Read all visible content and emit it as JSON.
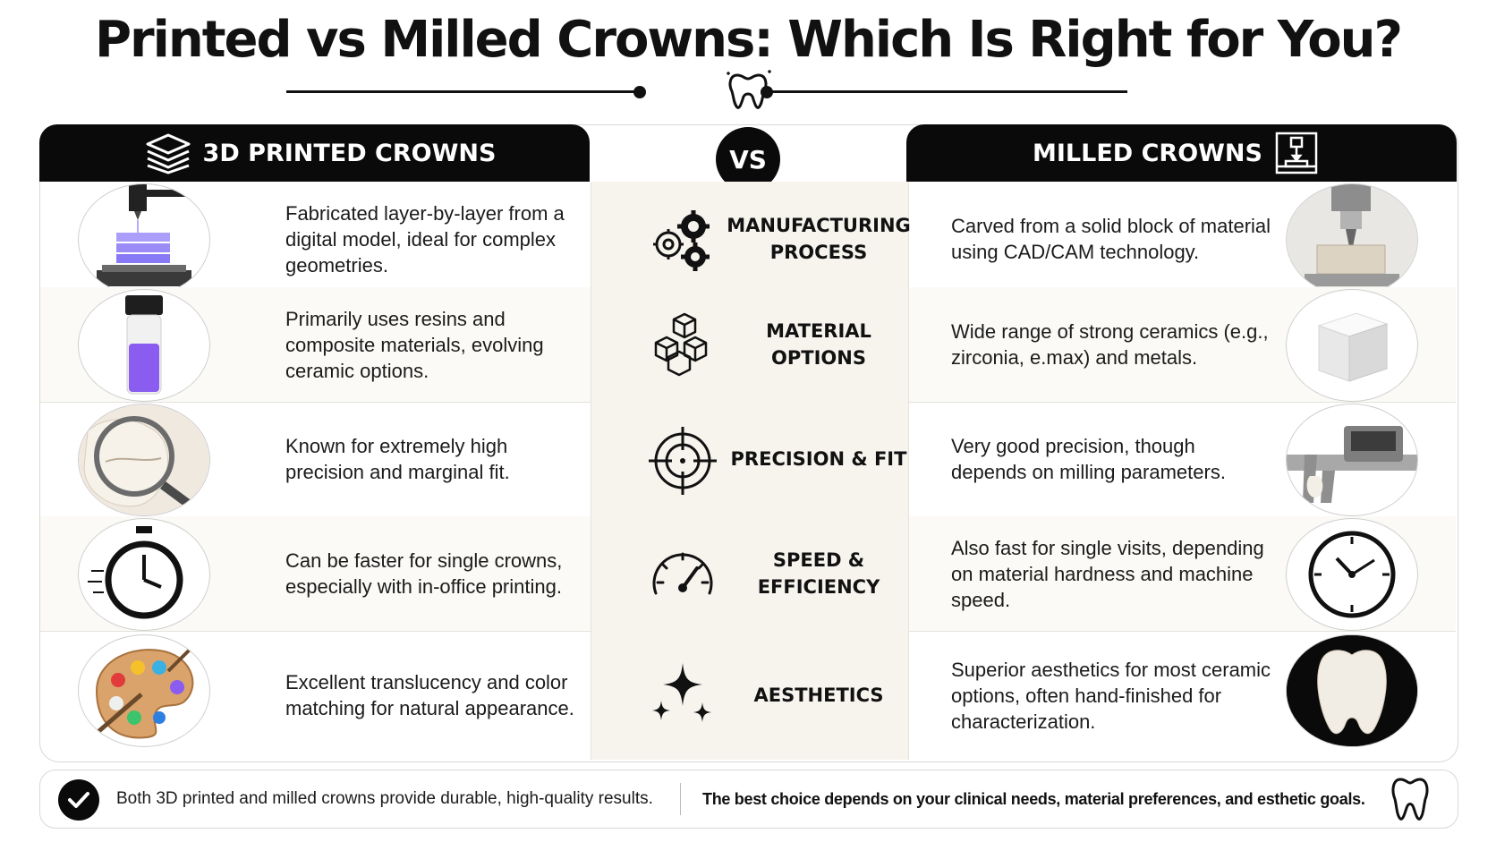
{
  "title": "Printed vs Milled Crowns: Which Is Right for You?",
  "header": {
    "left_label": "3D PRINTED CROWNS",
    "vs_label": "VS",
    "right_label": "MILLED CROWNS"
  },
  "rows": [
    {
      "category": "MANUFACTURING PROCESS",
      "category_icon": "gears-icon",
      "printed": "Fabricated layer-by-layer from a digital model, ideal for complex geometries.",
      "printed_image": "3d-printer-image",
      "milled": "Carved from a solid block of material using CAD/CAM technology.",
      "milled_image": "milling-machine-image"
    },
    {
      "category": "MATERIAL OPTIONS",
      "category_icon": "cubes-icon",
      "printed": "Primarily uses resins and composite materials, evolving ceramic options.",
      "printed_image": "resin-vial-image",
      "milled": "Wide range of strong ceramics (e.g., zirconia, e.max) and metals.",
      "milled_image": "ceramic-block-image"
    },
    {
      "category": "PRECISION & FIT",
      "category_icon": "target-icon",
      "printed": "Known for extremely high precision and marginal fit.",
      "printed_image": "magnifier-tooth-image",
      "milled": "Very good precision, though depends on milling parameters.",
      "milled_image": "caliper-image"
    },
    {
      "category": "SPEED & EFFICIENCY",
      "category_icon": "speedometer-icon",
      "printed": "Can be faster for single crowns, especially with in-office printing.",
      "printed_image": "stopwatch-image",
      "milled": "Also fast for single visits, depending on material hardness and machine speed.",
      "milled_image": "clock-image"
    },
    {
      "category": "AESTHETICS",
      "category_icon": "sparkle-icon",
      "printed": "Excellent translucency and color matching for natural appearance.",
      "printed_image": "paint-palette-image",
      "milled": "Superior aesthetics for most ceramic options, often hand-finished for characterization.",
      "milled_image": "crown-tooth-image"
    }
  ],
  "footer": {
    "left_text": "Both 3D printed and milled crowns provide durable, high-quality results.",
    "right_text": "The best choice depends on your clinical needs, material preferences, and esthetic goals."
  },
  "colors": {
    "header_bg": "#0a0a0a",
    "middle_column_bg": "#f7f4ee",
    "resin_purple": "#8a5cf0"
  }
}
